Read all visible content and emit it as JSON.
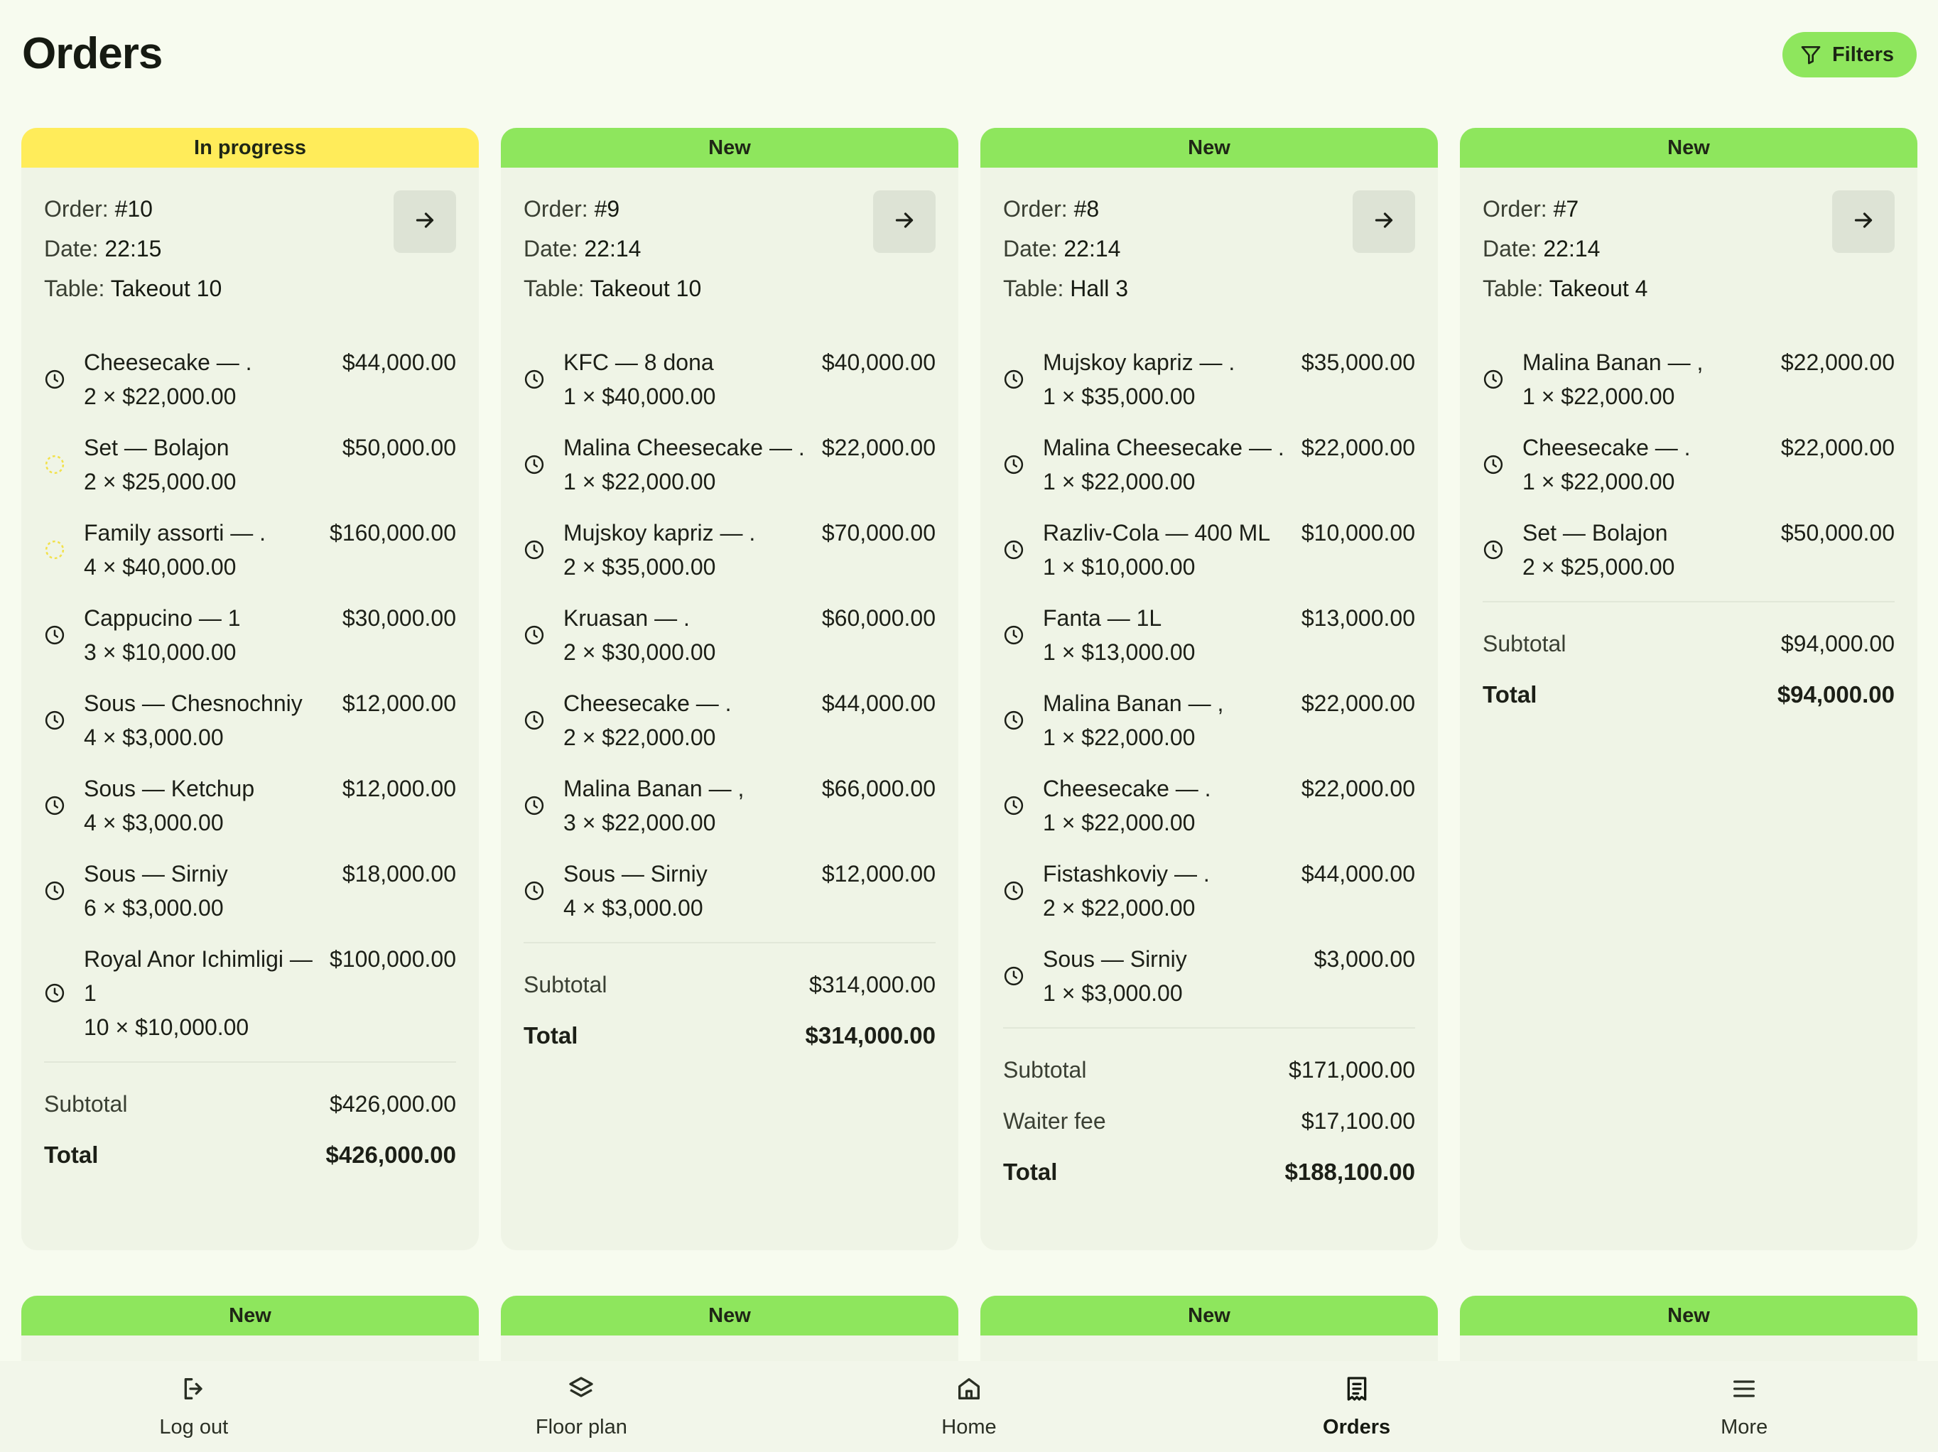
{
  "header": {
    "title": "Orders",
    "filters_label": "Filters"
  },
  "labels": {
    "order": "Order: ",
    "date": "Date: ",
    "table": "Table: ",
    "subtotal": "Subtotal",
    "waiter_fee": "Waiter fee",
    "total": "Total"
  },
  "orders": [
    {
      "status": "In progress",
      "status_type": "progress",
      "number": "#10",
      "date": "22:15",
      "table": "Takeout 10",
      "items": [
        {
          "name": "Cheesecake — .",
          "qty": "2 × $22,000.00",
          "price": "$44,000.00",
          "icon": "clock-icon"
        },
        {
          "name": "Set — Bolajon",
          "qty": "2 × $25,000.00",
          "price": "$50,000.00",
          "icon": "loading-icon"
        },
        {
          "name": "Family assorti — .",
          "qty": "4 × $40,000.00",
          "price": "$160,000.00",
          "icon": "loading-icon"
        },
        {
          "name": "Cappucino — 1",
          "qty": "3 × $10,000.00",
          "price": "$30,000.00",
          "icon": "clock-icon"
        },
        {
          "name": "Sous — Chesnochniy",
          "qty": "4 × $3,000.00",
          "price": "$12,000.00",
          "icon": "clock-icon"
        },
        {
          "name": "Sous — Ketchup",
          "qty": "4 × $3,000.00",
          "price": "$12,000.00",
          "icon": "clock-icon"
        },
        {
          "name": "Sous — Sirniy",
          "qty": "6 × $3,000.00",
          "price": "$18,000.00",
          "icon": "clock-icon"
        },
        {
          "name": "Royal Anor Ichimligi — 1",
          "qty": "10 × $10,000.00",
          "price": "$100,000.00",
          "icon": "clock-icon"
        }
      ],
      "subtotal": "$426,000.00",
      "waiter_fee": null,
      "total": "$426,000.00"
    },
    {
      "status": "New",
      "status_type": "new",
      "number": "#9",
      "date": "22:14",
      "table": "Takeout 10",
      "items": [
        {
          "name": "KFC — 8 dona",
          "qty": "1 × $40,000.00",
          "price": "$40,000.00",
          "icon": "clock-icon"
        },
        {
          "name": "Malina Cheesecake — .",
          "qty": "1 × $22,000.00",
          "price": "$22,000.00",
          "icon": "clock-icon"
        },
        {
          "name": "Mujskoy kapriz — .",
          "qty": "2 × $35,000.00",
          "price": "$70,000.00",
          "icon": "clock-icon"
        },
        {
          "name": "Kruasan — .",
          "qty": "2 × $30,000.00",
          "price": "$60,000.00",
          "icon": "clock-icon"
        },
        {
          "name": "Cheesecake — .",
          "qty": "2 × $22,000.00",
          "price": "$44,000.00",
          "icon": "clock-icon"
        },
        {
          "name": "Malina Banan — ,",
          "qty": "3 × $22,000.00",
          "price": "$66,000.00",
          "icon": "clock-icon"
        },
        {
          "name": "Sous — Sirniy",
          "qty": "4 × $3,000.00",
          "price": "$12,000.00",
          "icon": "clock-icon"
        }
      ],
      "subtotal": "$314,000.00",
      "waiter_fee": null,
      "total": "$314,000.00"
    },
    {
      "status": "New",
      "status_type": "new",
      "number": "#8",
      "date": "22:14",
      "table": "Hall 3",
      "items": [
        {
          "name": "Mujskoy kapriz — .",
          "qty": "1 × $35,000.00",
          "price": "$35,000.00",
          "icon": "clock-icon"
        },
        {
          "name": "Malina Cheesecake — .",
          "qty": "1 × $22,000.00",
          "price": "$22,000.00",
          "icon": "clock-icon"
        },
        {
          "name": "Razliv-Cola — 400 ML",
          "qty": "1 × $10,000.00",
          "price": "$10,000.00",
          "icon": "clock-icon"
        },
        {
          "name": "Fanta — 1L",
          "qty": "1 × $13,000.00",
          "price": "$13,000.00",
          "icon": "clock-icon"
        },
        {
          "name": "Malina Banan — ,",
          "qty": "1 × $22,000.00",
          "price": "$22,000.00",
          "icon": "clock-icon"
        },
        {
          "name": "Cheesecake — .",
          "qty": "1 × $22,000.00",
          "price": "$22,000.00",
          "icon": "clock-icon"
        },
        {
          "name": "Fistashkoviy — .",
          "qty": "2 × $22,000.00",
          "price": "$44,000.00",
          "icon": "clock-icon"
        },
        {
          "name": "Sous — Sirniy",
          "qty": "1 × $3,000.00",
          "price": "$3,000.00",
          "icon": "clock-icon"
        }
      ],
      "subtotal": "$171,000.00",
      "waiter_fee": "$17,100.00",
      "total": "$188,100.00"
    },
    {
      "status": "New",
      "status_type": "new",
      "number": "#7",
      "date": "22:14",
      "table": "Takeout 4",
      "items": [
        {
          "name": "Malina Banan — ,",
          "qty": "1 × $22,000.00",
          "price": "$22,000.00",
          "icon": "clock-icon"
        },
        {
          "name": "Cheesecake — .",
          "qty": "1 × $22,000.00",
          "price": "$22,000.00",
          "icon": "clock-icon"
        },
        {
          "name": "Set — Bolajon",
          "qty": "2 × $25,000.00",
          "price": "$50,000.00",
          "icon": "clock-icon"
        }
      ],
      "subtotal": "$94,000.00",
      "waiter_fee": null,
      "total": "$94,000.00"
    }
  ],
  "next_row_statuses": [
    "New",
    "New",
    "New",
    "New"
  ],
  "bottom_nav": [
    {
      "label": "Log out",
      "icon": "logout-icon",
      "active": false
    },
    {
      "label": "Floor plan",
      "icon": "layers-icon",
      "active": false
    },
    {
      "label": "Home",
      "icon": "home-icon",
      "active": false
    },
    {
      "label": "Orders",
      "icon": "receipt-icon",
      "active": true
    },
    {
      "label": "More",
      "icon": "menu-icon",
      "active": false
    }
  ],
  "colors": {
    "new": "#8ee65d",
    "in_progress": "#ffec5a",
    "background": "#f7fbef",
    "card": "#eff4e6"
  }
}
